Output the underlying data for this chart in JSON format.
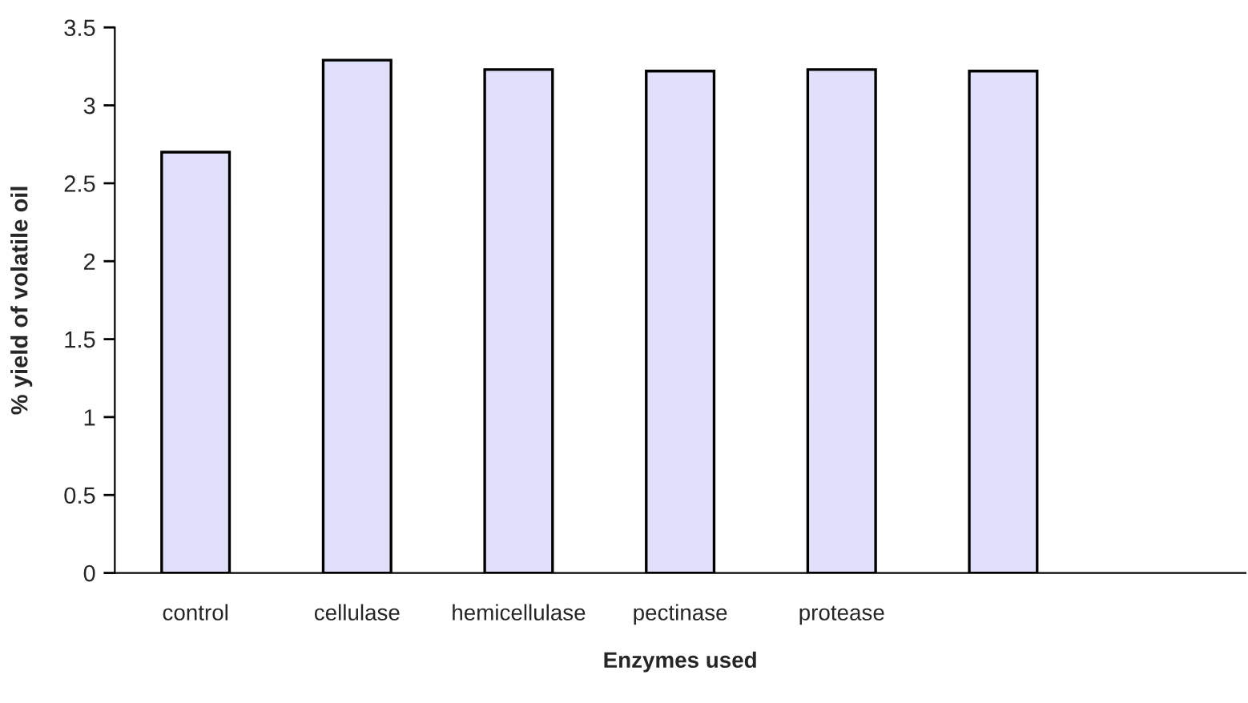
{
  "chart_data": {
    "type": "bar",
    "xlabel": "Enzymes used",
    "ylabel": "% yield of volatile oil",
    "categories": [
      "control",
      "cellulase",
      "hemicellulase",
      "pectinase",
      "protease",
      null,
      null
    ],
    "values": [
      2.7,
      3.29,
      3.23,
      3.22,
      3.23,
      3.22,
      null
    ],
    "color": "#e0e0fa",
    "ylim": [
      0,
      3.5
    ],
    "yticks": [
      0,
      0.5,
      1,
      1.5,
      2,
      2.5,
      3,
      3.5
    ],
    "grid": false,
    "legend": false
  }
}
